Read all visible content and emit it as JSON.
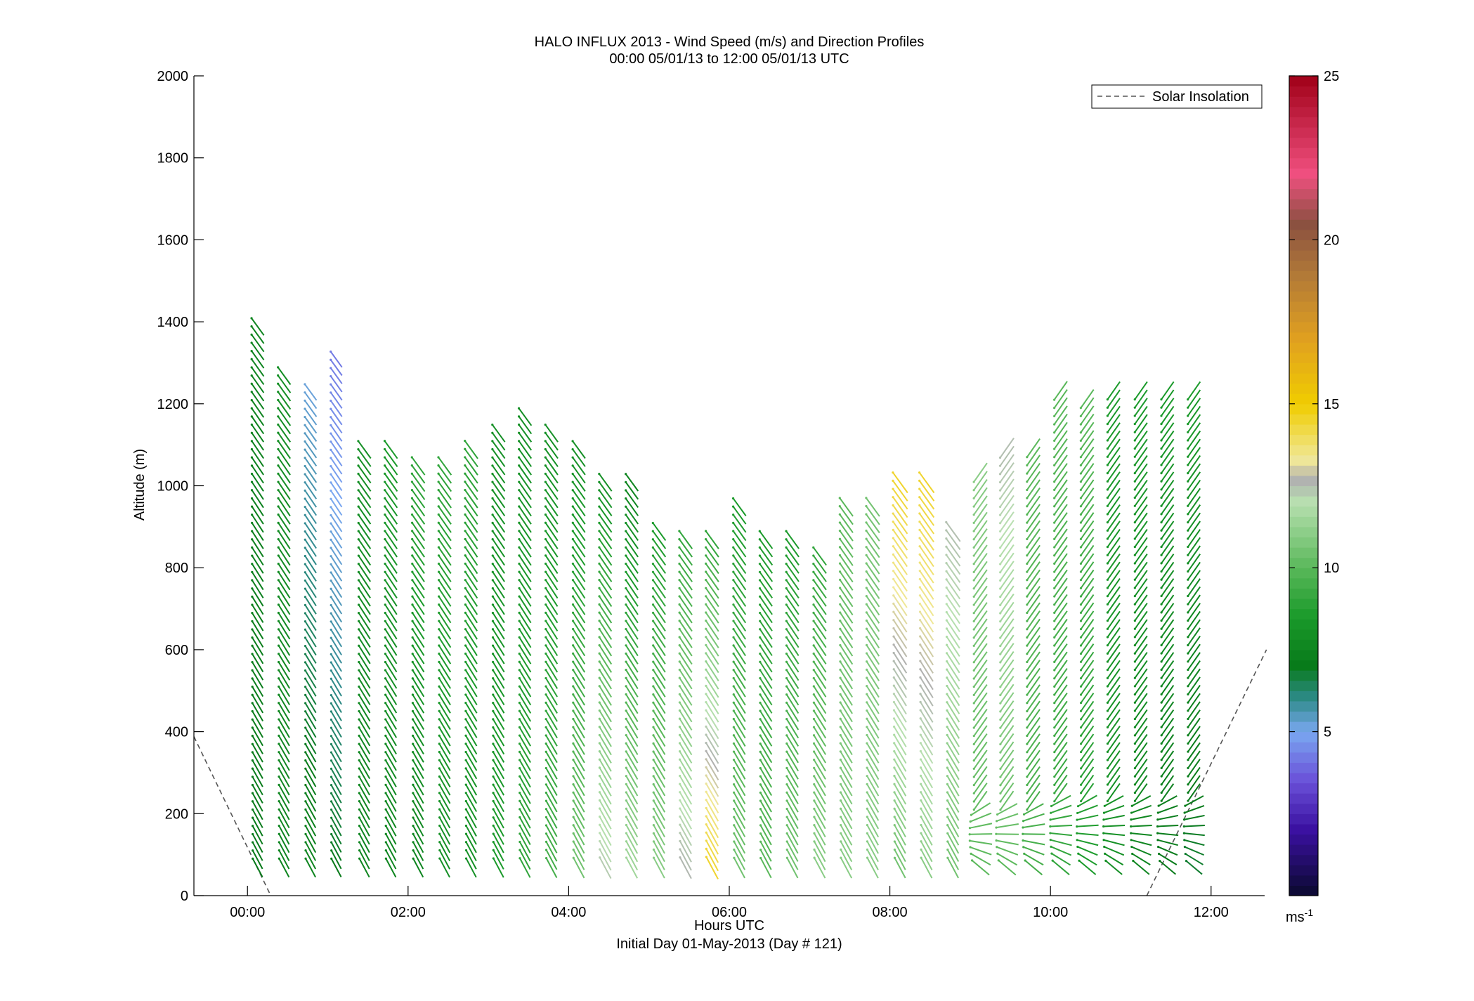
{
  "chart_data": {
    "type": "scatter",
    "title": "HALO INFLUX 2013 - Wind Speed (m/s) and Direction Profiles",
    "subtitle": "00:00 05/01/13 to 12:00 05/01/13  UTC",
    "xlabel": "Hours UTC",
    "xlabel2": "Initial Day 01-May-2013 (Day # 121)",
    "ylabel": "Altitude (m)",
    "xlim": [
      -0.667,
      12.667
    ],
    "ylim": [
      0,
      2000
    ],
    "x_ticks": [
      {
        "value": 0,
        "label": "00:00"
      },
      {
        "value": 2,
        "label": "02:00"
      },
      {
        "value": 4,
        "label": "04:00"
      },
      {
        "value": 6,
        "label": "06:00"
      },
      {
        "value": 8,
        "label": "08:00"
      },
      {
        "value": 10,
        "label": "10:00"
      },
      {
        "value": 12,
        "label": "12:00"
      }
    ],
    "y_ticks": [
      0,
      200,
      400,
      600,
      800,
      1000,
      1200,
      1400,
      1600,
      1800,
      2000
    ],
    "y_tick_labels": [
      "0",
      "200",
      "400",
      "600",
      "800",
      "1000",
      "1200",
      "1400",
      "1600",
      "1800",
      "2000"
    ],
    "grid": false,
    "legend": {
      "placement": "top-right",
      "entries": [
        {
          "name": "Solar Insolation",
          "style": "dashed",
          "color": "#555555"
        }
      ]
    },
    "colorbar": {
      "min": 0,
      "max": 25,
      "ticks": [
        5,
        10,
        15,
        20,
        25
      ],
      "tick_labels": [
        "5",
        "10",
        "15",
        "20",
        "25"
      ],
      "unit_base": "ms",
      "unit_exp": "-1",
      "stops": [
        {
          "v": 0,
          "c": "#0a0a2e"
        },
        {
          "v": 2,
          "c": "#3a10a0"
        },
        {
          "v": 3.5,
          "c": "#6a50d8"
        },
        {
          "v": 5,
          "c": "#7aa8f0"
        },
        {
          "v": 6,
          "c": "#2e8a8a"
        },
        {
          "v": 7,
          "c": "#087a1a"
        },
        {
          "v": 8.5,
          "c": "#1a9a2a"
        },
        {
          "v": 10,
          "c": "#5ab85a"
        },
        {
          "v": 12,
          "c": "#b8e0b0"
        },
        {
          "v": 12.7,
          "c": "#b0b0b0"
        },
        {
          "v": 13.3,
          "c": "#f0e898"
        },
        {
          "v": 15,
          "c": "#f0cc00"
        },
        {
          "v": 17,
          "c": "#e0a020"
        },
        {
          "v": 19,
          "c": "#b07838"
        },
        {
          "v": 20.5,
          "c": "#8a5040"
        },
        {
          "v": 22,
          "c": "#f05080"
        },
        {
          "v": 25,
          "c": "#a00018"
        }
      ]
    },
    "solar_insolation": [
      {
        "x": [
          -0.667,
          0.29
        ],
        "y": [
          388,
          0
        ]
      },
      {
        "x": [
          11.2,
          12.69
        ],
        "y": [
          0,
          600
        ]
      }
    ],
    "profiles": [
      {
        "t": 0.12,
        "top": 1400,
        "s_lo": 7,
        "s_hi": 7.5
      },
      {
        "t": 0.45,
        "top": 1280,
        "s_lo": 7.5,
        "s_hi": 8
      },
      {
        "t": 0.78,
        "top": 1240,
        "s_lo": 7.5,
        "s_hi": 5.2
      },
      {
        "t": 1.1,
        "top": 1320,
        "s_lo": 7,
        "s_hi": 4.2
      },
      {
        "t": 1.45,
        "top": 1090,
        "s_lo": 7.5,
        "s_hi": 8
      },
      {
        "t": 1.78,
        "top": 1090,
        "s_lo": 7.5,
        "s_hi": 8.5
      },
      {
        "t": 2.12,
        "top": 1050,
        "s_lo": 7.5,
        "s_hi": 9
      },
      {
        "t": 2.45,
        "top": 1050,
        "s_lo": 8,
        "s_hi": 9
      },
      {
        "t": 2.78,
        "top": 1090,
        "s_lo": 8,
        "s_hi": 9
      },
      {
        "t": 3.12,
        "top": 1130,
        "s_lo": 8.5,
        "s_hi": 8
      },
      {
        "t": 3.45,
        "top": 1170,
        "s_lo": 9,
        "s_hi": 8
      },
      {
        "t": 3.78,
        "top": 1130,
        "s_lo": 9.5,
        "s_hi": 8
      },
      {
        "t": 4.12,
        "top": 1090,
        "s_lo": 10.5,
        "s_hi": 8
      },
      {
        "t": 4.45,
        "top": 1010,
        "s_lo": 12.3,
        "s_hi": 8
      },
      {
        "t": 4.78,
        "top": 1010,
        "s_lo": 11.5,
        "s_hi": 7.5
      },
      {
        "t": 5.12,
        "top": 900,
        "s_lo": 11,
        "s_hi": 8.5
      },
      {
        "t": 5.45,
        "top": 870,
        "s_lo": 12.6,
        "s_hi": 9
      },
      {
        "t": 5.78,
        "top": 870,
        "s_lo": 14.5,
        "s_hi": 9
      },
      {
        "t": 6.12,
        "top": 950,
        "s_lo": 10.5,
        "s_hi": 8.5
      },
      {
        "t": 6.45,
        "top": 870,
        "s_lo": 10,
        "s_hi": 8.5
      },
      {
        "t": 6.78,
        "top": 870,
        "s_lo": 10.5,
        "s_hi": 8.5
      },
      {
        "t": 7.12,
        "top": 830,
        "s_lo": 11,
        "s_hi": 9
      },
      {
        "t": 7.45,
        "top": 950,
        "s_lo": 11,
        "s_hi": 10
      },
      {
        "t": 7.78,
        "top": 950,
        "s_lo": 11,
        "s_hi": 10.5
      },
      {
        "t": 8.12,
        "top": 1010,
        "s_lo": 10.5,
        "s_hi": 14.5
      },
      {
        "t": 8.45,
        "top": 1010,
        "s_lo": 11,
        "s_hi": 14.5
      },
      {
        "t": 8.78,
        "top": 900,
        "s_lo": 10.5,
        "s_hi": 12.5
      },
      {
        "t": 9.12,
        "top": 1040,
        "s_lo": 10,
        "s_hi": 11
      },
      {
        "t": 9.45,
        "top": 1090,
        "s_lo": 10,
        "s_hi": 12.5
      },
      {
        "t": 9.78,
        "top": 1090,
        "s_lo": 9.5,
        "s_hi": 10
      },
      {
        "t": 10.12,
        "top": 1240,
        "s_lo": 9,
        "s_hi": 10
      },
      {
        "t": 10.45,
        "top": 1220,
        "s_lo": 8.5,
        "s_hi": 10
      },
      {
        "t": 10.78,
        "top": 1240,
        "s_lo": 8,
        "s_hi": 8.5
      },
      {
        "t": 11.12,
        "top": 1240,
        "s_lo": 7.5,
        "s_hi": 8.5
      },
      {
        "t": 11.45,
        "top": 1240,
        "s_lo": 7,
        "s_hi": 8.5
      },
      {
        "t": 11.78,
        "top": 1240,
        "s_lo": 6.8,
        "s_hi": 8.5
      }
    ]
  }
}
